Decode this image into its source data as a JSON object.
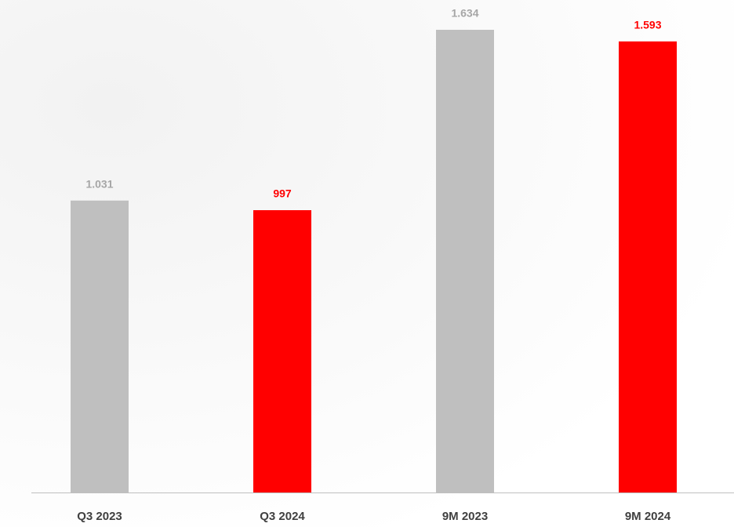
{
  "chart_data": {
    "type": "bar",
    "categories": [
      "Q3 2023",
      "Q3 2024",
      "9M 2023",
      "9M 2024"
    ],
    "values": [
      1031,
      997,
      1634,
      1593
    ],
    "value_labels": [
      "1.031",
      "997",
      "1.634",
      "1.593"
    ],
    "colors": [
      "#bfbfbf",
      "#ff0000",
      "#bfbfbf",
      "#ff0000"
    ],
    "label_colors": [
      "#a6a6a6",
      "#ff0000",
      "#a6a6a6",
      "#ff0000"
    ]
  }
}
